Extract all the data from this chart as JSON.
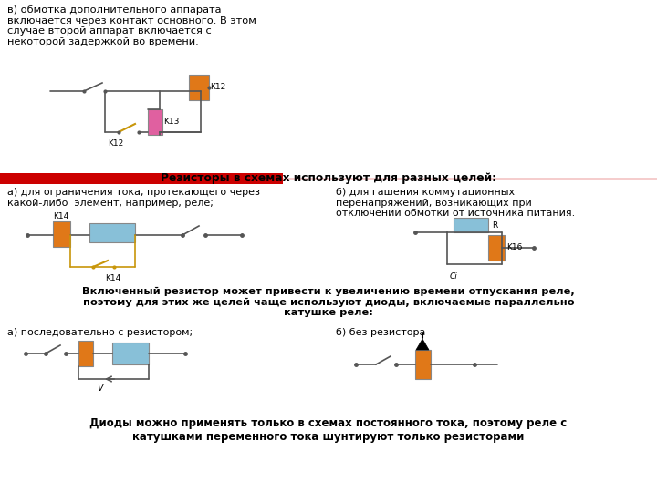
{
  "bg_color": "#ffffff",
  "title_text": "в) обмотка дополнительного аппарата\nвключается через контакт основного. В этом\nслучае второй аппарат включается с\nнекоторой задержкой во времени.",
  "red_banner_text": "Резисторы в схемах используют для разных целей:",
  "section_a_title": "а) для ограничения тока, протекающего через\nкакой-либо  элемент, например, реле;",
  "section_b_title": "б) для гашения коммутационных\nперенапряжений, возникающих при\nотключении обмотки от источника питания.",
  "bold_text": "Включенный резистор может привести к увеличению времени отпускания реле,\nпоэтому для этих же целей чаще используют диоды, включаемые параллельно\nкатушке реле:",
  "diode_a_title": "а) последовательно с резистором;",
  "diode_b_title": "б) без резистора",
  "bottom_bold_text": "Диоды можно применять только в схемах постоянного тока, поэтому реле с\nкатушками переменного тока шунтируют только резисторами",
  "orange_color": "#E07818",
  "pink_color": "#E060A0",
  "blue_color": "#88C0D8",
  "red_color": "#CC0000",
  "wire_color": "#555555",
  "gold_color": "#C8960A",
  "font_family": "DejaVu Sans"
}
